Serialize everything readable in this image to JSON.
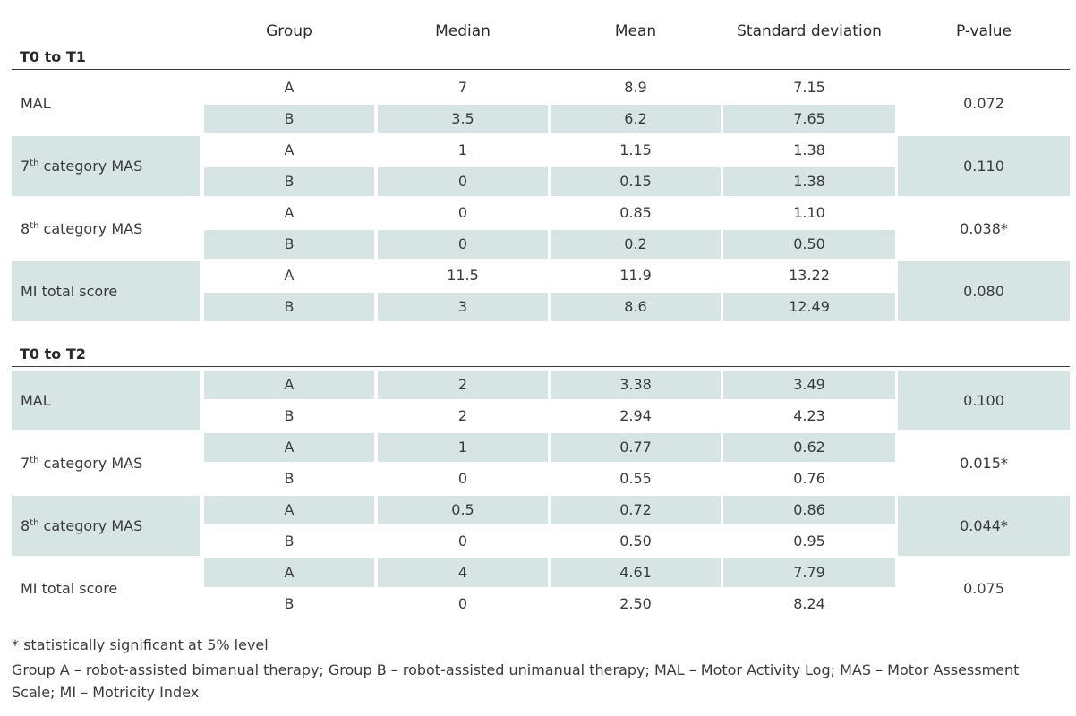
{
  "headers": [
    "Group",
    "Median",
    "Mean",
    "Standard deviation",
    "P-value"
  ],
  "sections": [
    {
      "label": "T0 to T1",
      "rows": [
        {
          "name": "MAL",
          "sup": "",
          "suffix": "",
          "p": "0.072",
          "a": {
            "group": "A",
            "median": "7",
            "mean": "8.9",
            "sd": "7.15"
          },
          "b": {
            "group": "B",
            "median": "3.5",
            "mean": "6.2",
            "sd": "7.65"
          }
        },
        {
          "name": "7",
          "sup": "th",
          "suffix": " category MAS",
          "p": "0.110",
          "a": {
            "group": "A",
            "median": "1",
            "mean": "1.15",
            "sd": "1.38"
          },
          "b": {
            "group": "B",
            "median": "0",
            "mean": "0.15",
            "sd": "1.38"
          }
        },
        {
          "name": "8",
          "sup": "th",
          "suffix": " category MAS",
          "p": "0.038*",
          "a": {
            "group": "A",
            "median": "0",
            "mean": "0.85",
            "sd": "1.10"
          },
          "b": {
            "group": "B",
            "median": "0",
            "mean": "0.2",
            "sd": "0.50"
          }
        },
        {
          "name": "MI total score",
          "sup": "",
          "suffix": "",
          "p": "0.080",
          "a": {
            "group": "A",
            "median": "11.5",
            "mean": "11.9",
            "sd": "13.22"
          },
          "b": {
            "group": "B",
            "median": "3",
            "mean": "8.6",
            "sd": "12.49"
          }
        }
      ]
    },
    {
      "label": "T0 to T2",
      "rows": [
        {
          "name": "MAL",
          "sup": "",
          "suffix": "",
          "p": "0.100",
          "a": {
            "group": "A",
            "median": "2",
            "mean": "3.38",
            "sd": "3.49"
          },
          "b": {
            "group": "B",
            "median": "2",
            "mean": "2.94",
            "sd": "4.23"
          }
        },
        {
          "name": "7",
          "sup": "th",
          "suffix": " category MAS",
          "p": "0.015*",
          "a": {
            "group": "A",
            "median": "1",
            "mean": "0.77",
            "sd": "0.62"
          },
          "b": {
            "group": "B",
            "median": "0",
            "mean": "0.55",
            "sd": "0.76"
          }
        },
        {
          "name": "8",
          "sup": "th",
          "suffix": " category MAS",
          "p": "0.044*",
          "a": {
            "group": "A",
            "median": "0.5",
            "mean": "0.72",
            "sd": "0.86"
          },
          "b": {
            "group": "B",
            "median": "0",
            "mean": "0.50",
            "sd": "0.95"
          }
        },
        {
          "name": "MI total score",
          "sup": "",
          "suffix": "",
          "p": "0.075",
          "a": {
            "group": "A",
            "median": "4",
            "mean": "4.61",
            "sd": "7.79"
          },
          "b": {
            "group": "B",
            "median": "0",
            "mean": "2.50",
            "sd": "8.24"
          }
        }
      ]
    }
  ],
  "footnotes": {
    "significance": "* statistically significant at 5% level",
    "legend_line1": "Group A – robot-assisted bimanual therapy; Group B – robot-assisted unimanual therapy; MAL – Motor Activity Log; MAS – Motor Assessment",
    "legend_line2": "Scale; MI – Motricity Index"
  },
  "colors": {
    "shade": "#d6e4e4",
    "text": "#3a3a3a",
    "rule": "#3a3a3a"
  }
}
